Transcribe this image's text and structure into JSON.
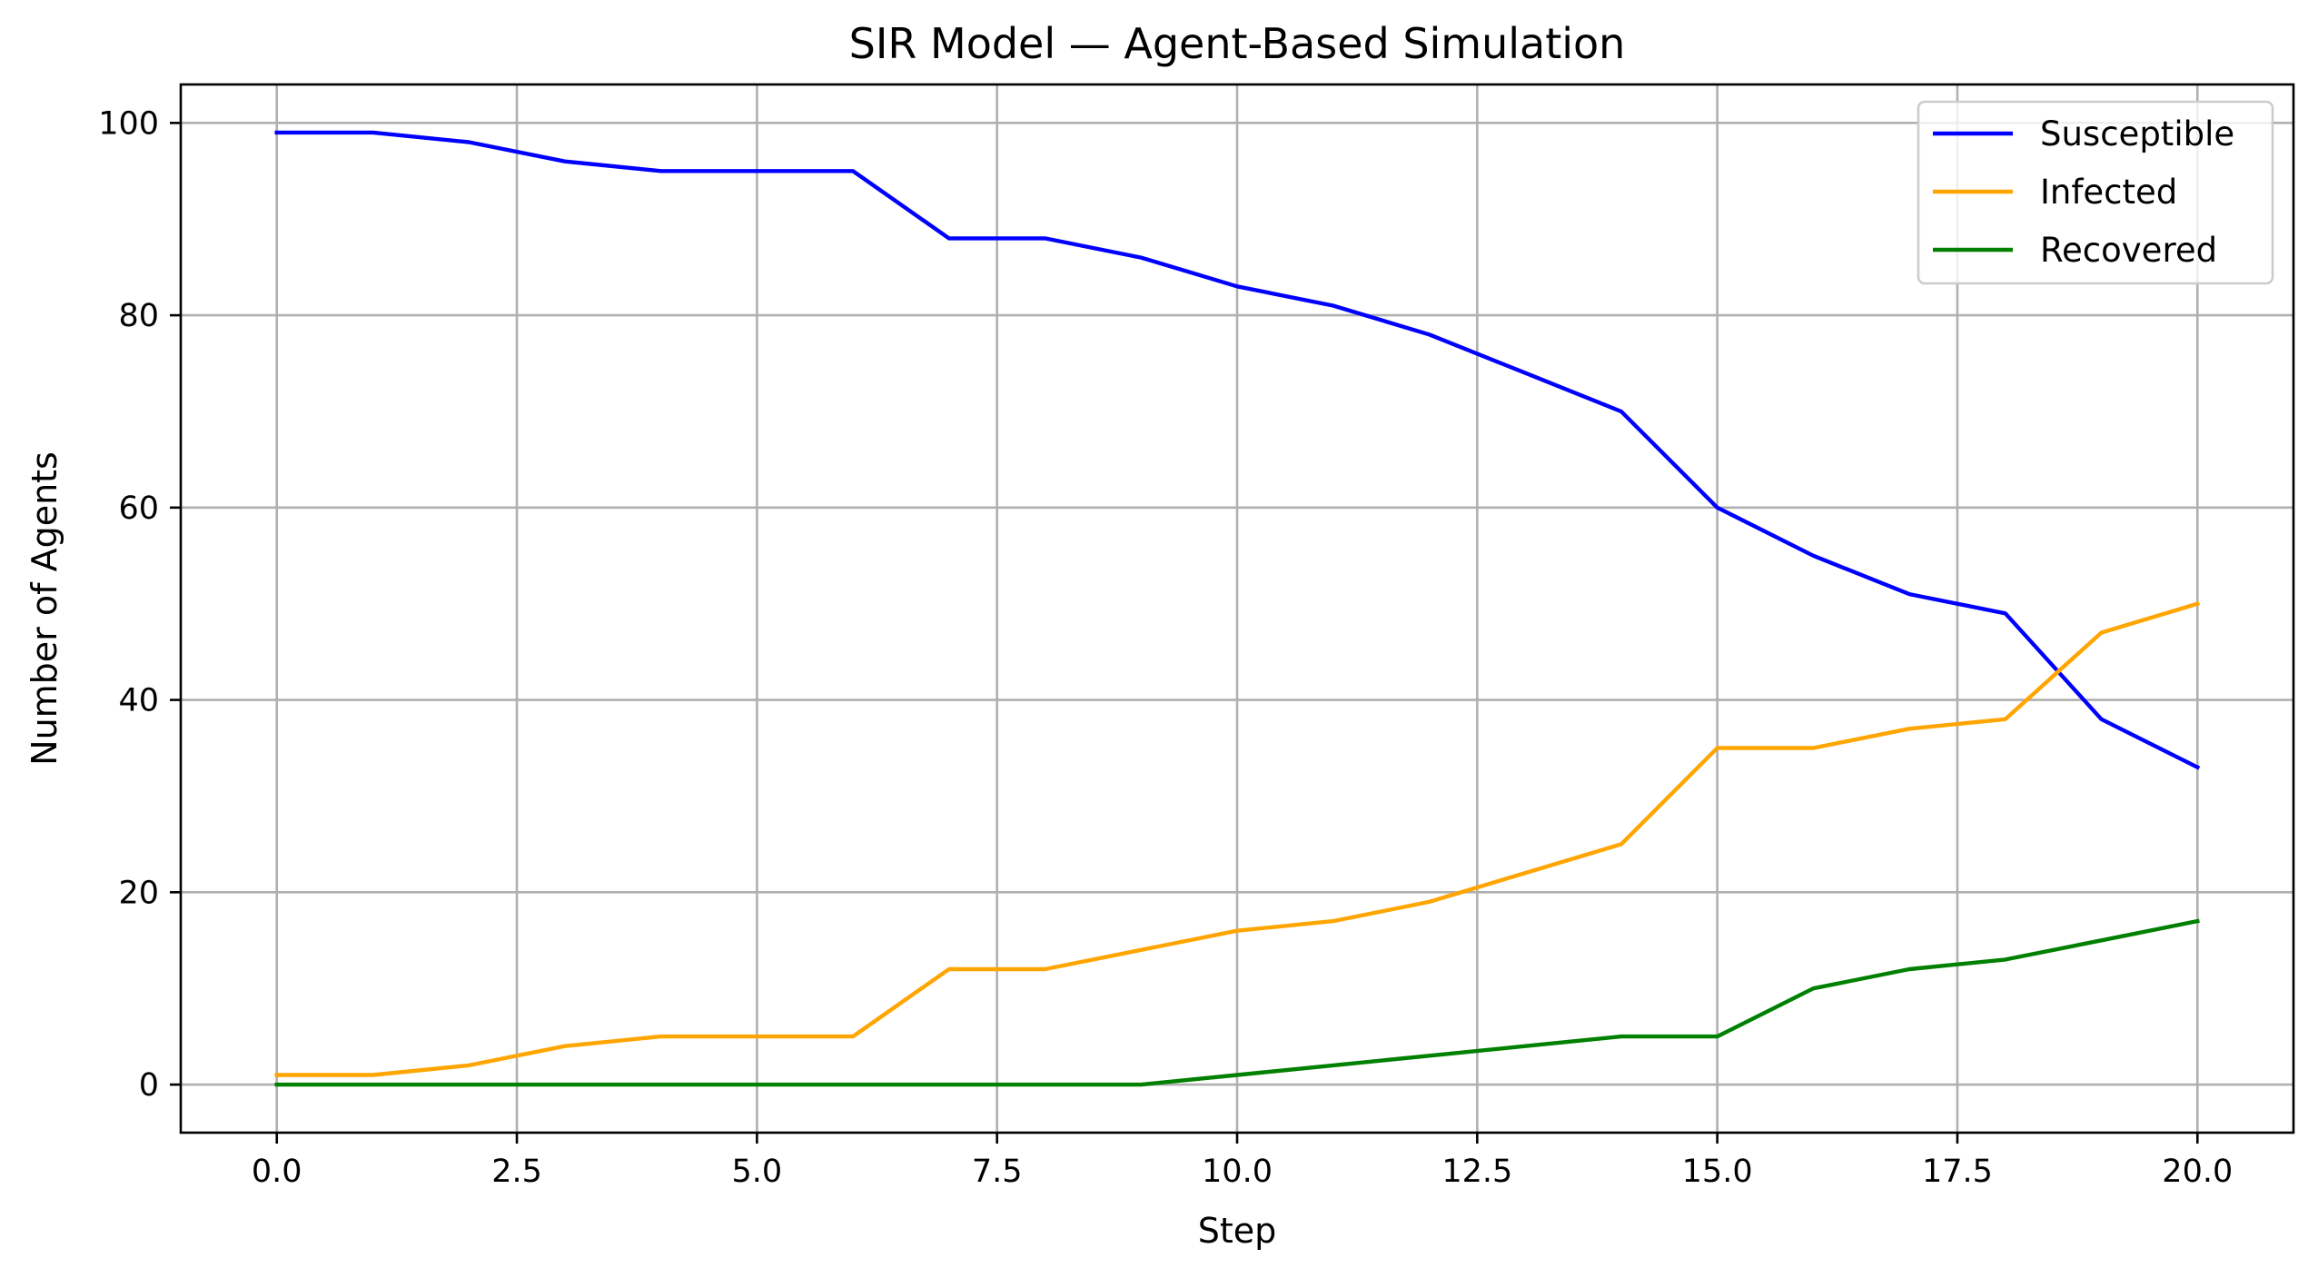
{
  "chart_data": {
    "type": "line",
    "title": "SIR Model — Agent-Based Simulation",
    "xlabel": "Step",
    "ylabel": "Number of Agents",
    "xlim": [
      -1,
      21
    ],
    "ylim": [
      -5,
      104
    ],
    "xticks": [
      0.0,
      2.5,
      5.0,
      7.5,
      10.0,
      12.5,
      15.0,
      17.5,
      20.0
    ],
    "xtick_labels": [
      "0.0",
      "2.5",
      "5.0",
      "7.5",
      "10.0",
      "12.5",
      "15.0",
      "17.5",
      "20.0"
    ],
    "yticks": [
      0,
      20,
      40,
      60,
      80,
      100
    ],
    "ytick_labels": [
      "0",
      "20",
      "40",
      "60",
      "80",
      "100"
    ],
    "grid": true,
    "legend_position": "top-right",
    "x": [
      0,
      1,
      2,
      3,
      4,
      5,
      6,
      7,
      8,
      9,
      10,
      11,
      12,
      13,
      14,
      15,
      16,
      17,
      18,
      19,
      20
    ],
    "series": [
      {
        "name": "Susceptible",
        "color": "#0000ff",
        "values": [
          99,
          99,
          98,
          96,
          95,
          95,
          95,
          88,
          88,
          86,
          83,
          81,
          78,
          74,
          70,
          60,
          55,
          51,
          49,
          38,
          33
        ]
      },
      {
        "name": "Infected",
        "color": "#ffa500",
        "values": [
          1,
          1,
          2,
          4,
          5,
          5,
          5,
          12,
          12,
          14,
          16,
          17,
          19,
          22,
          25,
          35,
          35,
          37,
          38,
          47,
          50
        ]
      },
      {
        "name": "Recovered",
        "color": "#008000",
        "values": [
          0,
          0,
          0,
          0,
          0,
          0,
          0,
          0,
          0,
          0,
          1,
          2,
          3,
          4,
          5,
          5,
          10,
          12,
          13,
          15,
          17
        ]
      }
    ]
  }
}
